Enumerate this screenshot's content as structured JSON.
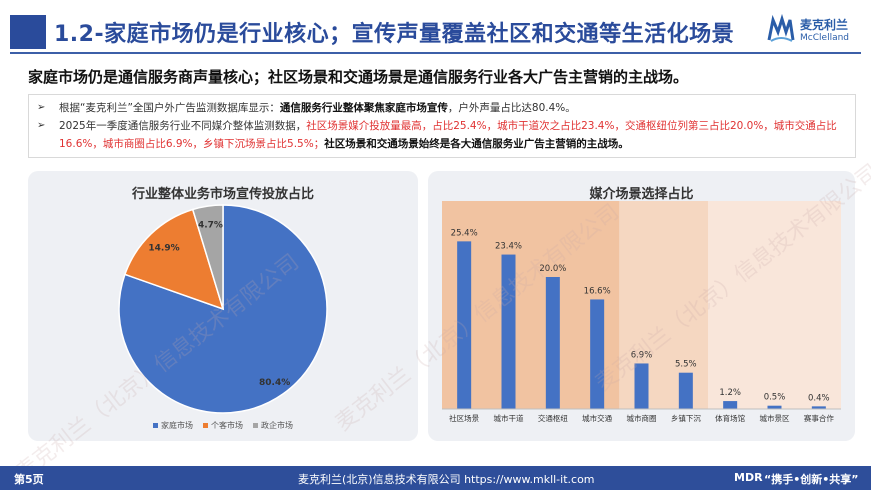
{
  "header": {
    "title": "1.2-家庭市场仍是行业核心；宣传声量覆盖社区和交通等生活化场景",
    "logo_cn": "麦克利兰",
    "logo_en": "McClelland",
    "logo_icon": "mcclelland-logo-icon"
  },
  "headline": "家庭市场仍是通信服务商声量核心；社区场景和交通场景是通信服务行业各大广告主营销的主战场。",
  "bullets": [
    {
      "arrow": "➢",
      "p1": "根据“麦克利兰”全国户外广告监测数据库显示：",
      "p2": "通信服务行业整体聚焦家庭市场宣传",
      "p3": "，户外声量占比达80.4%。"
    },
    {
      "arrow": "➢",
      "p1": "2025年一季度通信服务行业不同媒介整体监测数据，",
      "p2": "社区场景媒介投放量最高，占比25.4%，城市干道次之占比23.4%，交通枢纽位列第三占比20.0%，城市交通占比16.6%，城市商圈占比6.9%，乡镇下沉场景占比5.5%；",
      "p3": "社区场景和交通场景始终是各大通信服务业广告主营销的主战场。"
    }
  ],
  "chart_data": [
    {
      "type": "pie",
      "title": "行业整体业务市场宣传投放占比",
      "categories": [
        "家庭市场",
        "个客市场",
        "政企市场"
      ],
      "values": [
        80.4,
        14.9,
        4.7
      ],
      "labels": [
        "80.4%",
        "14.9%",
        "4.7%"
      ],
      "colors": [
        "#4472c4",
        "#ed7d31",
        "#a5a5a5"
      ],
      "legend": "bottom"
    },
    {
      "type": "bar",
      "title": "媒介场景选择占比",
      "categories": [
        "社区场景",
        "城市干道",
        "交通枢纽",
        "城市交通",
        "城市商圈",
        "乡镇下沉",
        "体育场馆",
        "城市景区",
        "赛事合作"
      ],
      "values": [
        25.4,
        23.4,
        20.0,
        16.6,
        6.9,
        5.5,
        1.2,
        0.5,
        0.4
      ],
      "labels": [
        "25.4%",
        "23.4%",
        "20.0%",
        "16.6%",
        "6.9%",
        "5.5%",
        "1.2%",
        "0.5%",
        "0.4%"
      ],
      "bar_color": "#4472c4",
      "ylim": [
        0,
        30
      ],
      "grid": false
    }
  ],
  "footer": {
    "page": "第5页",
    "company": "麦克利兰(北京)信息技术有限公司  https://www.mkll-it.com",
    "mdr": "MDR",
    "slogan": "“携手•创新•共享”"
  },
  "watermark_text": "麦克利兰（北京）信息技术有限公司"
}
